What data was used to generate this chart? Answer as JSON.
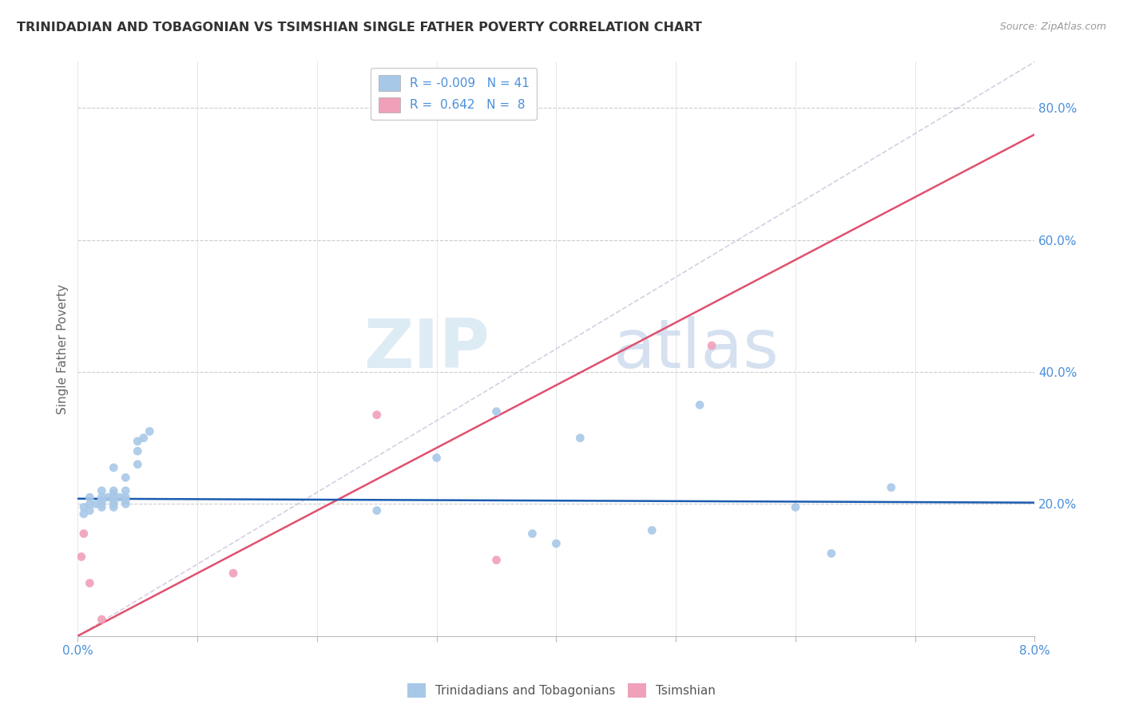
{
  "title": "TRINIDADIAN AND TOBAGONIAN VS TSIMSHIAN SINGLE FATHER POVERTY CORRELATION CHART",
  "source": "Source: ZipAtlas.com",
  "ylabel": "Single Father Poverty",
  "legend_label1": "Trinidadians and Tobagonians",
  "legend_label2": "Tsimshian",
  "blue_scatter_color": "#a8c8e8",
  "pink_scatter_color": "#f0a0b8",
  "blue_line_color": "#1a5cb0",
  "pink_line_color": "#e05070",
  "diag_line_color": "#c8b8d8",
  "watermark_zip_color": "#d0dff0",
  "watermark_atlas_color": "#c8d8e8",
  "blue_x": [
    0.0005,
    0.0005,
    0.001,
    0.001,
    0.001,
    0.0015,
    0.002,
    0.002,
    0.002,
    0.002,
    0.002,
    0.0025,
    0.003,
    0.003,
    0.003,
    0.003,
    0.003,
    0.003,
    0.003,
    0.0035,
    0.004,
    0.004,
    0.004,
    0.004,
    0.004,
    0.005,
    0.005,
    0.005,
    0.0055,
    0.006,
    0.025,
    0.03,
    0.035,
    0.038,
    0.04,
    0.042,
    0.048,
    0.052,
    0.06,
    0.063,
    0.068
  ],
  "blue_y": [
    0.185,
    0.195,
    0.19,
    0.2,
    0.21,
    0.2,
    0.195,
    0.2,
    0.205,
    0.21,
    0.22,
    0.21,
    0.195,
    0.2,
    0.205,
    0.21,
    0.215,
    0.22,
    0.255,
    0.21,
    0.2,
    0.205,
    0.21,
    0.22,
    0.24,
    0.26,
    0.28,
    0.295,
    0.3,
    0.31,
    0.19,
    0.27,
    0.34,
    0.155,
    0.14,
    0.3,
    0.16,
    0.35,
    0.195,
    0.125,
    0.225
  ],
  "pink_x": [
    0.0003,
    0.0005,
    0.001,
    0.002,
    0.013,
    0.025,
    0.035,
    0.053
  ],
  "pink_y": [
    0.12,
    0.155,
    0.08,
    0.025,
    0.095,
    0.335,
    0.115,
    0.44
  ],
  "blue_trend_x": [
    0.0,
    0.08
  ],
  "blue_trend_y": [
    0.208,
    0.202
  ],
  "pink_trend_x": [
    0.0,
    0.08
  ],
  "pink_trend_y": [
    0.0,
    0.76
  ],
  "diag_line_x": [
    0.0,
    0.08
  ],
  "diag_line_y": [
    0.0,
    0.87
  ],
  "xlim": [
    0.0,
    0.08
  ],
  "ylim": [
    0.0,
    0.87
  ]
}
